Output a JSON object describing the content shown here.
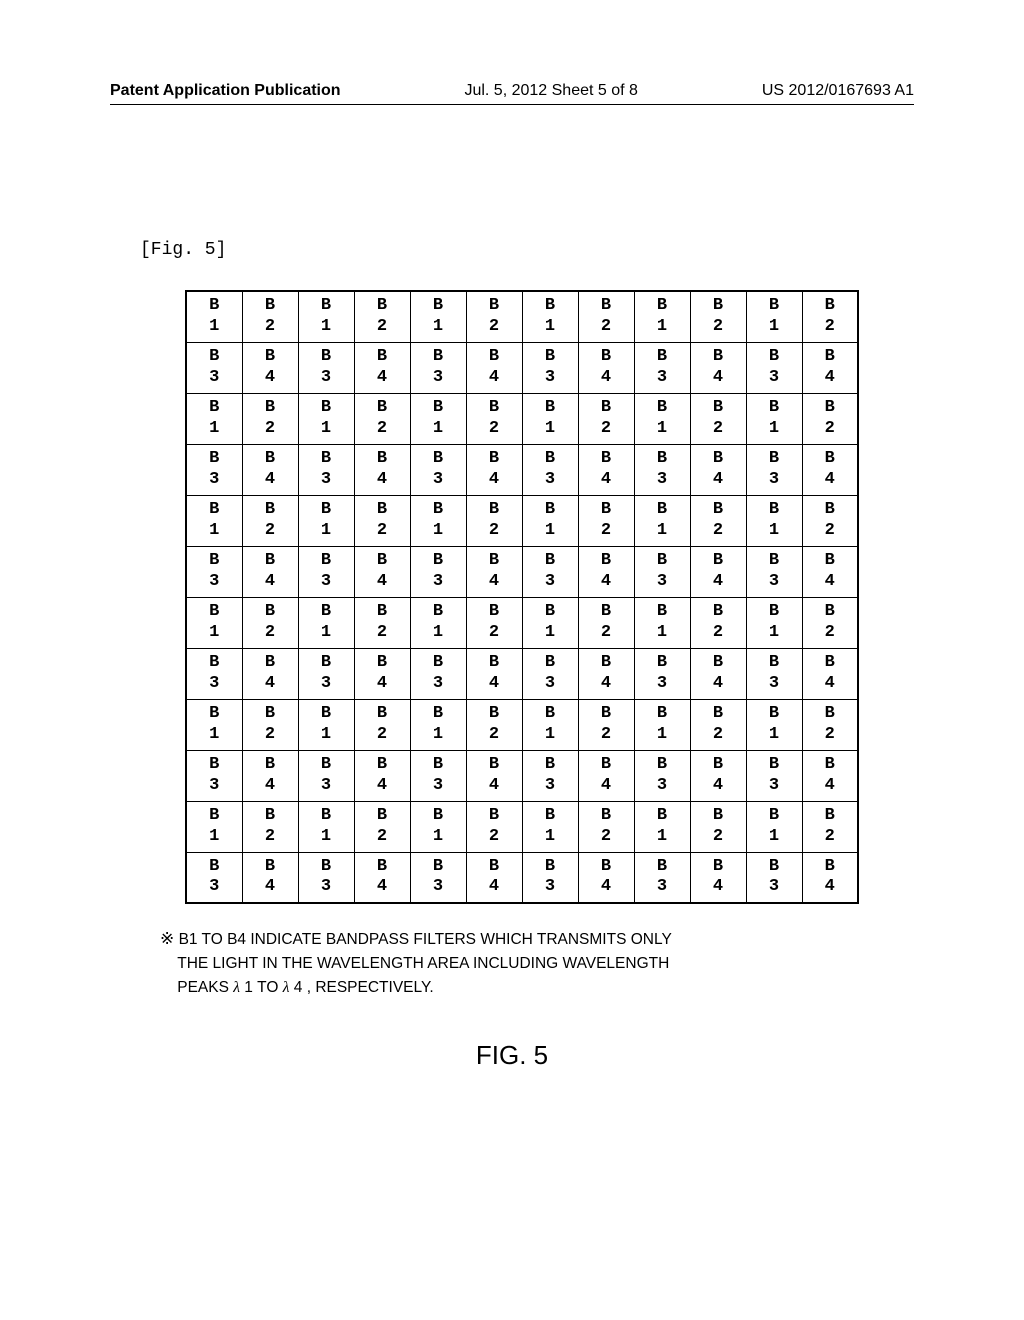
{
  "header": {
    "left": "Patent Application Publication",
    "center": "Jul. 5, 2012   Sheet 5 of 8",
    "right": "US 2012/0167693 A1"
  },
  "figLabel": "[Fig. 5]",
  "grid": {
    "rows": 12,
    "cols": 12,
    "letter": "B",
    "rowNumbers": [
      "1",
      "2",
      "3",
      "4"
    ],
    "cells": [
      [
        "1",
        "2",
        "1",
        "2",
        "1",
        "2",
        "1",
        "2",
        "1",
        "2",
        "1",
        "2"
      ],
      [
        "3",
        "4",
        "3",
        "4",
        "3",
        "4",
        "3",
        "4",
        "3",
        "4",
        "3",
        "4"
      ],
      [
        "1",
        "2",
        "1",
        "2",
        "1",
        "2",
        "1",
        "2",
        "1",
        "2",
        "1",
        "2"
      ],
      [
        "3",
        "4",
        "3",
        "4",
        "3",
        "4",
        "3",
        "4",
        "3",
        "4",
        "3",
        "4"
      ],
      [
        "1",
        "2",
        "1",
        "2",
        "1",
        "2",
        "1",
        "2",
        "1",
        "2",
        "1",
        "2"
      ],
      [
        "3",
        "4",
        "3",
        "4",
        "3",
        "4",
        "3",
        "4",
        "3",
        "4",
        "3",
        "4"
      ],
      [
        "1",
        "2",
        "1",
        "2",
        "1",
        "2",
        "1",
        "2",
        "1",
        "2",
        "1",
        "2"
      ],
      [
        "3",
        "4",
        "3",
        "4",
        "3",
        "4",
        "3",
        "4",
        "3",
        "4",
        "3",
        "4"
      ],
      [
        "1",
        "2",
        "1",
        "2",
        "1",
        "2",
        "1",
        "2",
        "1",
        "2",
        "1",
        "2"
      ],
      [
        "3",
        "4",
        "3",
        "4",
        "3",
        "4",
        "3",
        "4",
        "3",
        "4",
        "3",
        "4"
      ],
      [
        "1",
        "2",
        "1",
        "2",
        "1",
        "2",
        "1",
        "2",
        "1",
        "2",
        "1",
        "2"
      ],
      [
        "3",
        "4",
        "3",
        "4",
        "3",
        "4",
        "3",
        "4",
        "3",
        "4",
        "3",
        "4"
      ]
    ]
  },
  "footnote": {
    "symbol": "※",
    "line1": "B1 TO B4 INDICATE BANDPASS FILTERS WHICH TRANSMITS ONLY",
    "line2": "THE  LIGHT IN THE WAVELENGTH AREA INCLUDING WAVELENGTH",
    "line3a": "PEAKS ",
    "lambda": "λ",
    "line3b": " 1 TO ",
    "line3c": " 4 , RESPECTIVELY."
  },
  "figCaption": "FIG. 5",
  "colors": {
    "background": "#ffffff",
    "border": "#000000",
    "text": "#000000"
  }
}
